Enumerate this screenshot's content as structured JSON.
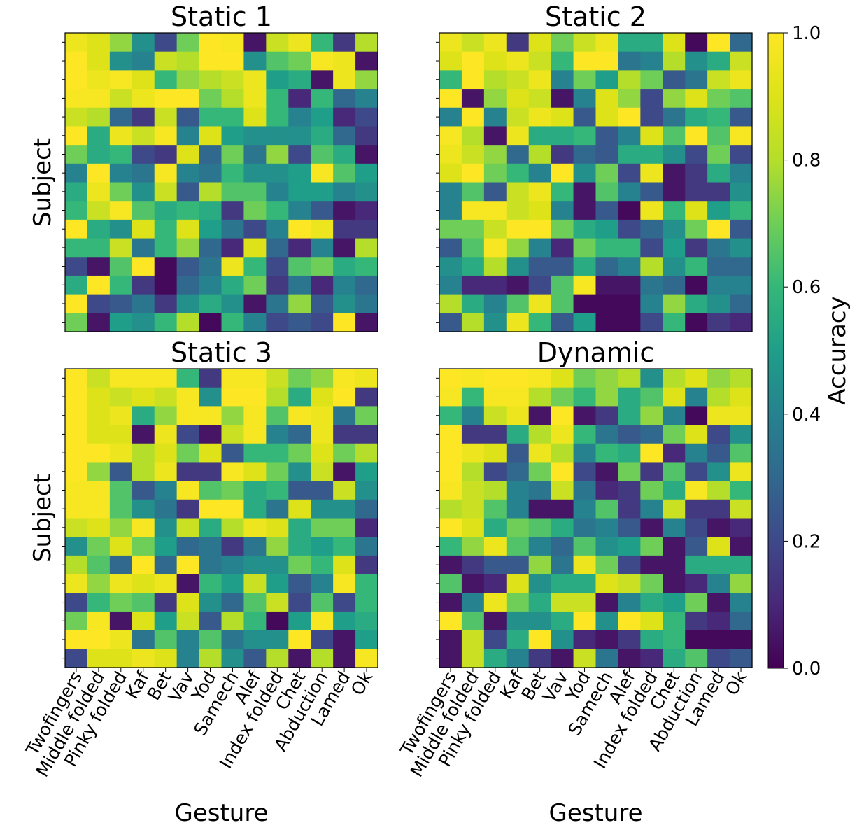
{
  "chart_data": {
    "type": "heatmap",
    "colormap": "viridis",
    "value_range": [
      0,
      1
    ],
    "x_categories": [
      "Twofingers",
      "Middle folded",
      "Pinky folded",
      "Kaf",
      "Bet",
      "Vav",
      "Yod",
      "Samech",
      "Alef",
      "Index folded",
      "Chet",
      "Abduction",
      "Lamed",
      "Ok"
    ],
    "colorbar": {
      "label": "Accuracy",
      "ticks": [
        "0.0",
        "0.2",
        "0.4",
        "0.6",
        "0.8",
        "1.0"
      ]
    },
    "panels": [
      {
        "title": "Static 1",
        "ylabel": "Subject",
        "xlabel": "",
        "values": [
          [
            0.95,
            0.9,
            0.75,
            0.45,
            0.2,
            0.7,
            1.0,
            0.98,
            0.05,
            0.85,
            0.95,
            0.6,
            0.15,
            0.8
          ],
          [
            1.0,
            0.9,
            0.45,
            0.4,
            0.85,
            0.8,
            1.0,
            1.0,
            0.45,
            0.65,
            0.7,
            0.98,
            0.95,
            0.05
          ],
          [
            1.0,
            0.95,
            0.98,
            0.9,
            0.6,
            0.75,
            0.8,
            0.85,
            0.95,
            0.5,
            0.55,
            0.05,
            0.95,
            0.75
          ],
          [
            0.98,
            0.98,
            0.85,
            0.95,
            1.0,
            1.0,
            0.7,
            0.8,
            0.95,
            0.6,
            0.1,
            0.6,
            0.3,
            0.4
          ],
          [
            0.85,
            0.8,
            0.3,
            0.15,
            0.85,
            0.25,
            0.6,
            0.6,
            0.9,
            0.6,
            0.4,
            0.5,
            0.1,
            0.2
          ],
          [
            1.0,
            0.55,
            0.95,
            0.85,
            0.98,
            0.4,
            0.9,
            0.5,
            0.45,
            0.45,
            0.45,
            0.55,
            0.3,
            0.15
          ],
          [
            0.7,
            0.55,
            0.6,
            0.2,
            0.15,
            0.9,
            0.3,
            0.7,
            0.35,
            0.75,
            0.2,
            0.65,
            0.55,
            0.05
          ],
          [
            0.4,
            1.0,
            0.4,
            0.35,
            0.98,
            0.4,
            0.35,
            0.6,
            0.45,
            0.45,
            0.5,
            0.98,
            0.65,
            0.5
          ],
          [
            0.55,
            0.95,
            0.7,
            0.45,
            0.85,
            0.25,
            0.8,
            0.65,
            0.65,
            0.4,
            0.5,
            0.5,
            0.4,
            0.45
          ],
          [
            0.6,
            0.85,
            0.98,
            0.65,
            0.55,
            0.6,
            0.55,
            0.15,
            0.7,
            0.6,
            0.4,
            0.25,
            0.05,
            0.1
          ],
          [
            1.0,
            0.55,
            0.45,
            0.9,
            0.6,
            0.9,
            0.5,
            0.35,
            0.2,
            0.4,
            1.0,
            0.95,
            0.15,
            0.15
          ],
          [
            0.6,
            0.6,
            0.85,
            0.35,
            0.6,
            0.75,
            0.3,
            0.1,
            0.9,
            0.3,
            0.1,
            0.4,
            0.05,
            0.8
          ],
          [
            0.2,
            0.05,
            0.65,
            1.0,
            0.02,
            0.25,
            0.35,
            0.95,
            0.6,
            0.2,
            0.65,
            0.7,
            0.55,
            0.6
          ],
          [
            0.55,
            1.0,
            0.6,
            0.15,
            0.02,
            0.3,
            0.4,
            0.55,
            0.7,
            0.15,
            0.35,
            0.1,
            0.4,
            0.3
          ],
          [
            1.0,
            0.2,
            0.25,
            0.35,
            0.15,
            0.45,
            0.55,
            0.45,
            0.05,
            0.35,
            0.75,
            0.25,
            0.45,
            0.35
          ],
          [
            0.7,
            0.05,
            0.5,
            0.45,
            0.6,
            0.8,
            0.02,
            0.6,
            0.4,
            0.2,
            0.25,
            0.2,
            1.0,
            0.05
          ]
        ]
      },
      {
        "title": "Static 2",
        "ylabel": "",
        "xlabel": "",
        "values": [
          [
            0.95,
            0.85,
            0.95,
            0.15,
            0.9,
            0.7,
            0.85,
            0.95,
            0.55,
            0.55,
            0.9,
            0.02,
            1.0,
            0.3
          ],
          [
            0.9,
            1.0,
            0.9,
            0.95,
            0.85,
            0.6,
            1.0,
            1.0,
            0.35,
            0.4,
            0.8,
            0.45,
            0.55,
            0.85
          ],
          [
            0.6,
            1.0,
            0.8,
            0.85,
            0.95,
            0.4,
            0.7,
            0.5,
            0.8,
            0.7,
            0.25,
            0.35,
            0.85,
            0.95
          ],
          [
            1.0,
            0.05,
            0.75,
            0.9,
            0.85,
            0.05,
            0.4,
            0.9,
            0.75,
            0.2,
            0.75,
            0.9,
            0.7,
            0.65
          ],
          [
            0.4,
            1.0,
            0.4,
            0.85,
            0.95,
            0.9,
            0.25,
            0.9,
            1.0,
            0.2,
            0.35,
            0.55,
            0.6,
            0.25
          ],
          [
            0.98,
            0.8,
            0.05,
            0.95,
            0.55,
            0.55,
            0.6,
            0.25,
            0.4,
            0.9,
            0.65,
            1.0,
            0.65,
            0.98
          ],
          [
            0.95,
            0.85,
            0.75,
            0.3,
            0.8,
            0.15,
            0.3,
            0.25,
            0.55,
            0.55,
            0.45,
            0.2,
            0.7,
            0.2
          ],
          [
            0.9,
            1.0,
            0.7,
            0.6,
            0.4,
            1.0,
            0.45,
            0.7,
            0.2,
            0.95,
            0.05,
            0.15,
            0.55,
            0.4
          ],
          [
            0.4,
            0.65,
            0.25,
            0.85,
            0.95,
            0.6,
            0.05,
            0.65,
            0.4,
            0.25,
            0.05,
            0.15,
            0.15,
            0.45
          ],
          [
            0.4,
            0.98,
            0.98,
            0.85,
            0.9,
            0.4,
            0.05,
            0.25,
            0.02,
            0.95,
            0.6,
            0.9,
            0.5,
            0.6
          ],
          [
            0.7,
            0.7,
            0.85,
            1.0,
            1.0,
            0.7,
            0.55,
            0.5,
            0.2,
            0.3,
            0.45,
            0.7,
            1.0,
            0.25
          ],
          [
            0.25,
            0.65,
            0.98,
            0.75,
            0.4,
            0.1,
            0.7,
            0.6,
            0.6,
            0.2,
            0.5,
            0.15,
            0.35,
            0.45
          ],
          [
            0.45,
            0.55,
            0.8,
            0.45,
            0.25,
            0.25,
            0.55,
            0.3,
            0.4,
            0.8,
            0.45,
            0.6,
            0.3,
            0.3
          ],
          [
            0.4,
            0.1,
            0.1,
            0.05,
            0.2,
            0.65,
            0.98,
            0.05,
            0.05,
            0.35,
            0.3,
            0.02,
            0.4,
            0.4
          ],
          [
            0.8,
            0.55,
            0.4,
            0.65,
            0.95,
            0.65,
            0.02,
            0.02,
            0.02,
            0.4,
            0.75,
            0.55,
            0.45,
            0.3
          ],
          [
            0.25,
            0.8,
            0.45,
            0.95,
            0.6,
            0.25,
            0.5,
            0.02,
            0.02,
            0.2,
            0.6,
            0.02,
            0.15,
            0.1
          ]
        ]
      },
      {
        "title": "Static 3",
        "ylabel": "Subject",
        "xlabel": "Gesture",
        "values": [
          [
            1.0,
            0.85,
            0.98,
            0.98,
            0.98,
            0.6,
            0.15,
            0.98,
            0.98,
            0.85,
            0.7,
            0.75,
            0.98,
            0.95
          ],
          [
            1.0,
            0.9,
            0.85,
            0.9,
            0.85,
            0.98,
            0.45,
            1.0,
            1.0,
            0.8,
            0.55,
            0.9,
            1.0,
            0.15
          ],
          [
            1.0,
            0.9,
            0.95,
            0.55,
            0.75,
            0.98,
            0.98,
            0.75,
            0.98,
            0.65,
            0.98,
            0.95,
            0.35,
            0.7
          ],
          [
            1.0,
            0.9,
            0.9,
            0.05,
            0.95,
            0.2,
            0.05,
            0.85,
            0.98,
            0.4,
            0.3,
            0.95,
            0.15,
            0.15
          ],
          [
            1.0,
            1.0,
            0.95,
            0.8,
            0.9,
            0.7,
            0.9,
            0.25,
            0.6,
            0.6,
            0.7,
            0.9,
            0.7,
            0.8
          ],
          [
            1.0,
            0.75,
            0.25,
            0.8,
            0.95,
            0.15,
            0.15,
            0.98,
            0.9,
            0.7,
            0.45,
            0.85,
            0.05,
            0.5
          ],
          [
            0.98,
            0.98,
            0.65,
            0.25,
            0.4,
            0.98,
            0.65,
            0.7,
            0.55,
            0.6,
            0.25,
            0.25,
            0.85,
            0.45
          ],
          [
            0.98,
            0.98,
            0.65,
            0.45,
            0.35,
            0.15,
            1.0,
            1.0,
            0.55,
            0.35,
            0.9,
            0.45,
            0.45,
            0.3
          ],
          [
            0.85,
            0.9,
            0.75,
            0.98,
            0.45,
            0.85,
            0.55,
            0.8,
            0.95,
            0.9,
            0.55,
            0.7,
            0.7,
            0.1
          ],
          [
            0.45,
            0.7,
            0.9,
            0.7,
            0.5,
            0.3,
            0.35,
            0.15,
            0.35,
            0.75,
            0.55,
            0.5,
            0.6,
            0.35
          ],
          [
            0.8,
            0.65,
            0.3,
            1.0,
            0.3,
            1.0,
            0.35,
            0.4,
            0.45,
            0.45,
            0.7,
            0.6,
            0.9,
            0.15
          ],
          [
            0.95,
            0.75,
            0.95,
            0.9,
            0.95,
            0.05,
            0.6,
            0.5,
            0.85,
            0.5,
            0.25,
            0.4,
            0.98,
            0.6
          ],
          [
            0.2,
            0.6,
            0.7,
            0.65,
            0.15,
            0.9,
            0.45,
            0.3,
            0.65,
            0.85,
            0.2,
            0.65,
            0.2,
            0.6
          ],
          [
            0.7,
            0.98,
            0.05,
            0.9,
            0.5,
            0.85,
            0.25,
            0.8,
            0.6,
            0.02,
            0.5,
            0.98,
            0.5,
            0.55
          ],
          [
            1.0,
            1.0,
            0.95,
            0.35,
            0.65,
            0.4,
            0.65,
            0.35,
            0.45,
            0.45,
            1.0,
            0.2,
            0.05,
            0.5
          ],
          [
            0.2,
            0.9,
            0.9,
            0.95,
            0.9,
            0.4,
            0.8,
            0.45,
            0.25,
            0.8,
            0.05,
            0.8,
            0.05,
            0.98
          ]
        ]
      },
      {
        "title": "Dynamic",
        "ylabel": "",
        "xlabel": "Gesture",
        "values": [
          [
            1.0,
            0.98,
            1.0,
            1.0,
            0.98,
            0.9,
            0.7,
            0.75,
            0.8,
            0.45,
            0.8,
            0.9,
            0.75,
            0.8
          ],
          [
            0.98,
            0.6,
            0.98,
            0.98,
            0.8,
            0.7,
            0.6,
            0.75,
            0.55,
            0.65,
            0.9,
            0.4,
            0.8,
            0.9
          ],
          [
            0.6,
            0.4,
            0.85,
            0.95,
            0.05,
            1.0,
            0.05,
            0.15,
            0.55,
            0.75,
            0.4,
            0.02,
            0.95,
            0.95
          ],
          [
            1.0,
            0.15,
            0.15,
            0.55,
            0.8,
            0.95,
            0.6,
            0.35,
            0.25,
            0.3,
            0.7,
            0.9,
            0.2,
            0.45
          ],
          [
            1.0,
            0.95,
            0.9,
            0.25,
            0.95,
            0.8,
            0.4,
            0.6,
            0.55,
            1.0,
            0.1,
            0.4,
            0.25,
            0.65
          ],
          [
            1.0,
            0.8,
            0.2,
            0.3,
            0.7,
            1.0,
            0.2,
            0.05,
            0.7,
            0.15,
            0.65,
            0.2,
            0.45,
            0.95
          ],
          [
            0.98,
            0.85,
            0.8,
            0.4,
            0.35,
            0.85,
            0.35,
            0.1,
            0.15,
            0.7,
            0.55,
            0.98,
            0.8,
            0.6
          ],
          [
            0.8,
            0.85,
            0.65,
            0.4,
            0.05,
            0.05,
            0.4,
            0.65,
            0.15,
            0.4,
            0.85,
            0.15,
            0.15,
            0.85
          ],
          [
            1.0,
            0.9,
            0.55,
            0.7,
            0.65,
            0.55,
            0.35,
            0.4,
            0.25,
            0.05,
            0.4,
            0.2,
            0.05,
            0.1
          ],
          [
            0.6,
            0.75,
            0.95,
            0.65,
            0.4,
            0.3,
            0.65,
            0.45,
            0.5,
            0.7,
            0.05,
            0.25,
            0.9,
            0.05
          ],
          [
            0.05,
            0.15,
            0.25,
            0.25,
            0.75,
            0.35,
            0.95,
            0.7,
            0.2,
            0.05,
            0.05,
            0.55,
            0.55,
            0.55
          ],
          [
            0.65,
            0.05,
            0.1,
            0.9,
            0.45,
            0.55,
            0.55,
            0.9,
            0.85,
            0.7,
            0.05,
            0.1,
            0.4,
            0.75
          ],
          [
            0.05,
            0.4,
            0.95,
            0.7,
            0.55,
            0.85,
            0.85,
            0.05,
            0.4,
            0.55,
            0.5,
            0.7,
            0.05,
            0.4
          ],
          [
            1.0,
            0.65,
            0.05,
            0.45,
            0.45,
            0.55,
            1.0,
            0.45,
            1.0,
            0.9,
            0.6,
            0.15,
            0.1,
            0.3
          ],
          [
            0.05,
            0.85,
            0.2,
            0.55,
            1.0,
            0.45,
            0.1,
            0.05,
            0.15,
            0.55,
            0.6,
            0.02,
            0.02,
            0.02
          ],
          [
            0.05,
            0.85,
            0.55,
            0.4,
            0.15,
            0.05,
            0.85,
            0.35,
            0.05,
            0.1,
            0.55,
            0.65,
            0.2,
            0.25
          ]
        ]
      }
    ]
  }
}
